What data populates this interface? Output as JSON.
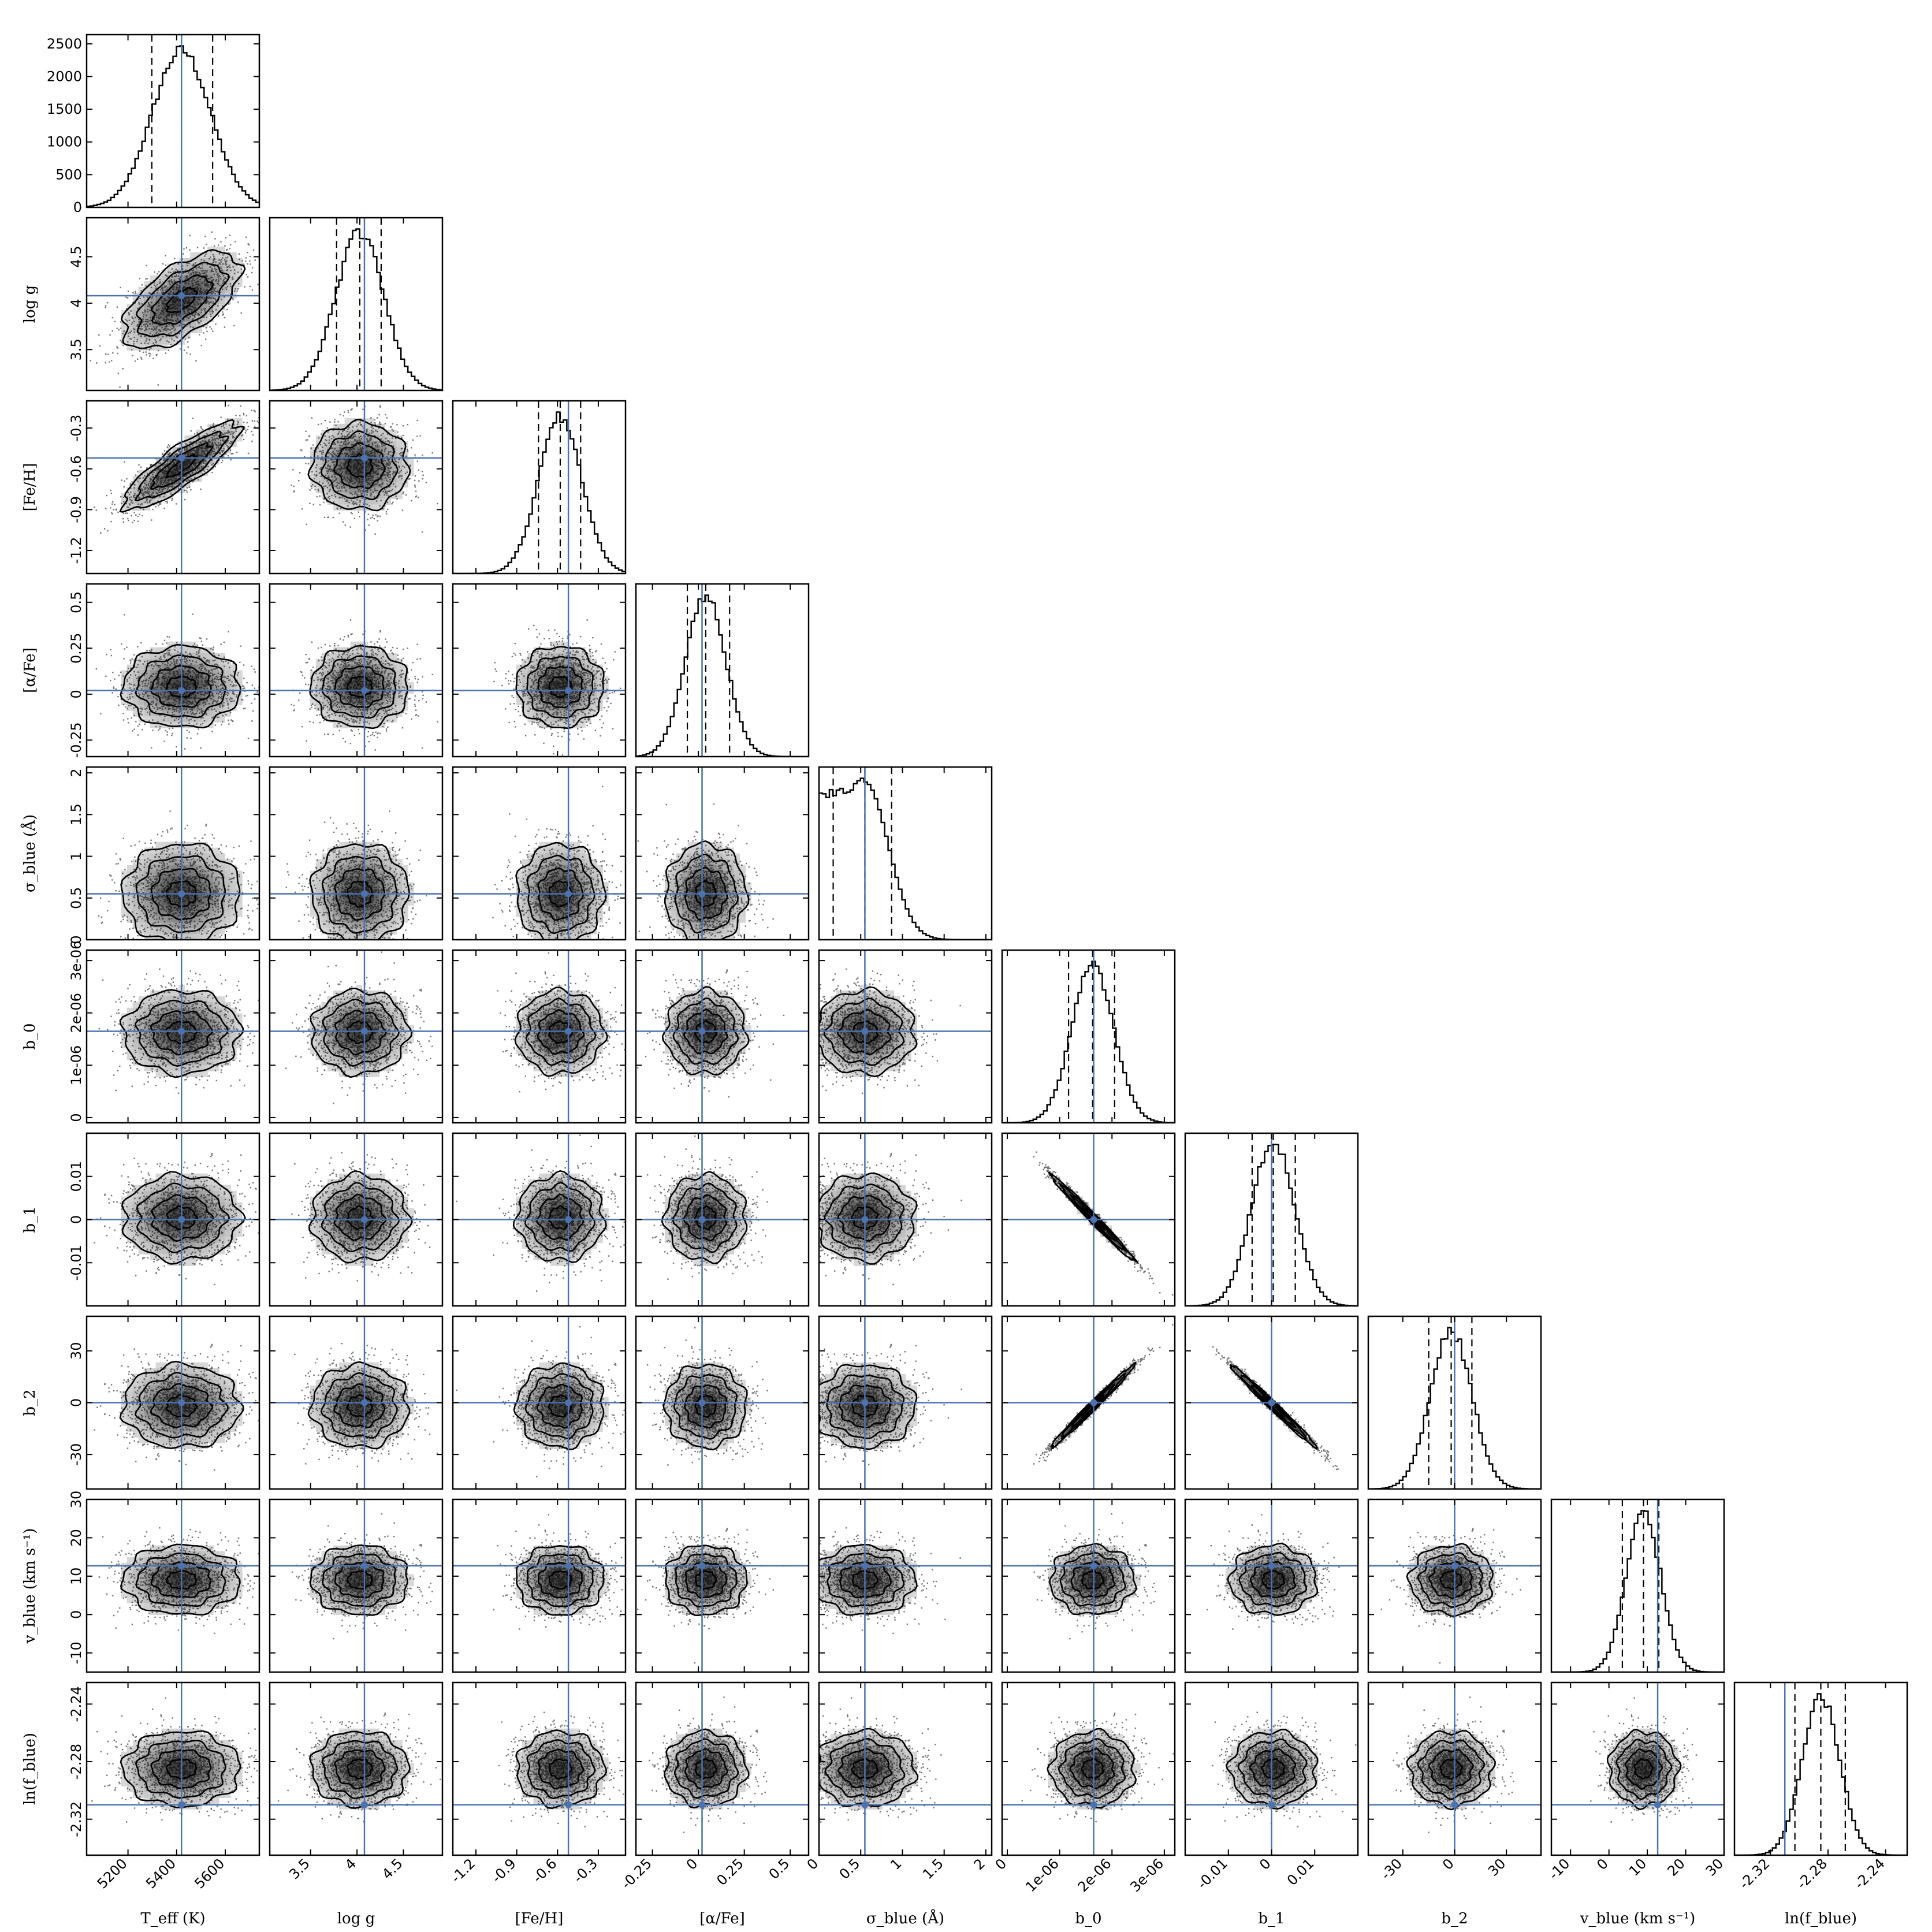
{
  "chart_data": {
    "type": "corner",
    "title": "",
    "parameters": [
      {
        "label": "T_eff (K)",
        "range": [
          5030,
          5740
        ],
        "ticks": [
          5200,
          5400,
          5600
        ],
        "ticklabels": [
          "5200",
          "5400",
          "5600"
        ],
        "truth": 5420,
        "quantiles": [
          5298,
          5420,
          5548
        ],
        "sd": 120,
        "hist_ymax": 2640
      },
      {
        "label": "log g",
        "range": [
          3.06,
          4.92
        ],
        "ticks": [
          3.5,
          4,
          4.5
        ],
        "ticklabels": [
          "3.5",
          "4",
          "4.5"
        ],
        "truth": 4.08,
        "quantiles": [
          3.78,
          4.03,
          4.26
        ],
        "sd": 0.26
      },
      {
        "label": "[Fe/H]",
        "range": [
          -1.37,
          -0.1
        ],
        "ticks": [
          -1.2,
          -0.9,
          -0.6,
          -0.3
        ],
        "ticklabels": [
          "-1.2",
          "-0.9",
          "-0.6",
          "-0.3"
        ],
        "truth": -0.52,
        "quantiles": [
          -0.74,
          -0.58,
          -0.43
        ],
        "sd": 0.16
      },
      {
        "label": "[α/Fe]",
        "range": [
          -0.34,
          0.6
        ],
        "ticks": [
          -0.25,
          0,
          0.25,
          0.5
        ],
        "ticklabels": [
          "-0.25",
          "0",
          "0.25",
          "0.5"
        ],
        "truth": 0.02,
        "quantiles": [
          -0.06,
          0.04,
          0.17
        ],
        "sd": 0.11
      },
      {
        "label": "σ_blue (Å)",
        "range": [
          0,
          2.07
        ],
        "ticks": [
          0,
          0.5,
          1,
          1.5,
          2
        ],
        "ticklabels": [
          "0",
          "0.5",
          "1",
          "1.5",
          "2"
        ],
        "truth": 0.55,
        "quantiles": [
          0.17,
          0.55,
          0.87
        ],
        "sd": 0.3
      },
      {
        "label": "b_0",
        "range": [
          -1e-07,
          3.2e-06
        ],
        "ticks": [
          0,
          1e-06,
          2e-06,
          3e-06
        ],
        "ticklabels": [
          "0",
          "1e-06",
          "2e-06",
          "3e-06"
        ],
        "truth": 1.65e-06,
        "quantiles": [
          1.17e-06,
          1.63e-06,
          2.05e-06
        ],
        "sd": 4e-07
      },
      {
        "label": "b_1",
        "range": [
          -0.02,
          0.02
        ],
        "ticks": [
          -0.01,
          0,
          0.01
        ],
        "ticklabels": [
          "-0.01",
          "0",
          "0.01"
        ],
        "truth": 0.0,
        "quantiles": [
          -0.0045,
          0.0004,
          0.0055
        ],
        "sd": 0.005
      },
      {
        "label": "b_2",
        "range": [
          -50,
          50
        ],
        "ticks": [
          -30,
          0,
          30
        ],
        "ticklabels": [
          "-30",
          "0",
          "30"
        ],
        "truth": 0,
        "quantiles": [
          -15,
          -2,
          10
        ],
        "sd": 12
      },
      {
        "label": "v_blue (km s⁻¹)",
        "range": [
          -15,
          30
        ],
        "ticks": [
          -10,
          0,
          10,
          20,
          30
        ],
        "ticklabels": [
          "-10",
          "0",
          "10",
          "20",
          "30"
        ],
        "truth": 12.7,
        "quantiles": [
          3.5,
          9,
          13
        ],
        "sd": 4.5
      },
      {
        "label": "ln(f_blue)",
        "range": [
          -2.345,
          -2.225
        ],
        "ticks": [
          -2.32,
          -2.28,
          -2.24
        ],
        "ticklabels": [
          "-2.32",
          "-2.28",
          "-2.24"
        ],
        "truth": -2.31,
        "quantiles": [
          -2.303,
          -2.285,
          -2.268
        ],
        "sd": 0.013
      }
    ],
    "hist_yticks": [
      0,
      500,
      1000,
      1500,
      2000,
      2500
    ],
    "hist_yticklabels": [
      "0",
      "500",
      "1000",
      "1500",
      "2000",
      "2500"
    ],
    "correlations": [
      {
        "pair": [
          0,
          1
        ],
        "rho": 0.6
      },
      {
        "pair": [
          0,
          2
        ],
        "rho": 0.85
      },
      {
        "pair": [
          5,
          6
        ],
        "rho": -0.99
      },
      {
        "pair": [
          5,
          7
        ],
        "rho": 0.99
      },
      {
        "pair": [
          6,
          7
        ],
        "rho": -0.99
      }
    ],
    "colors": {
      "truth": "#4c72b0",
      "ink": "#000000",
      "background": "#ffffff"
    },
    "grid": false,
    "legend": "none"
  }
}
